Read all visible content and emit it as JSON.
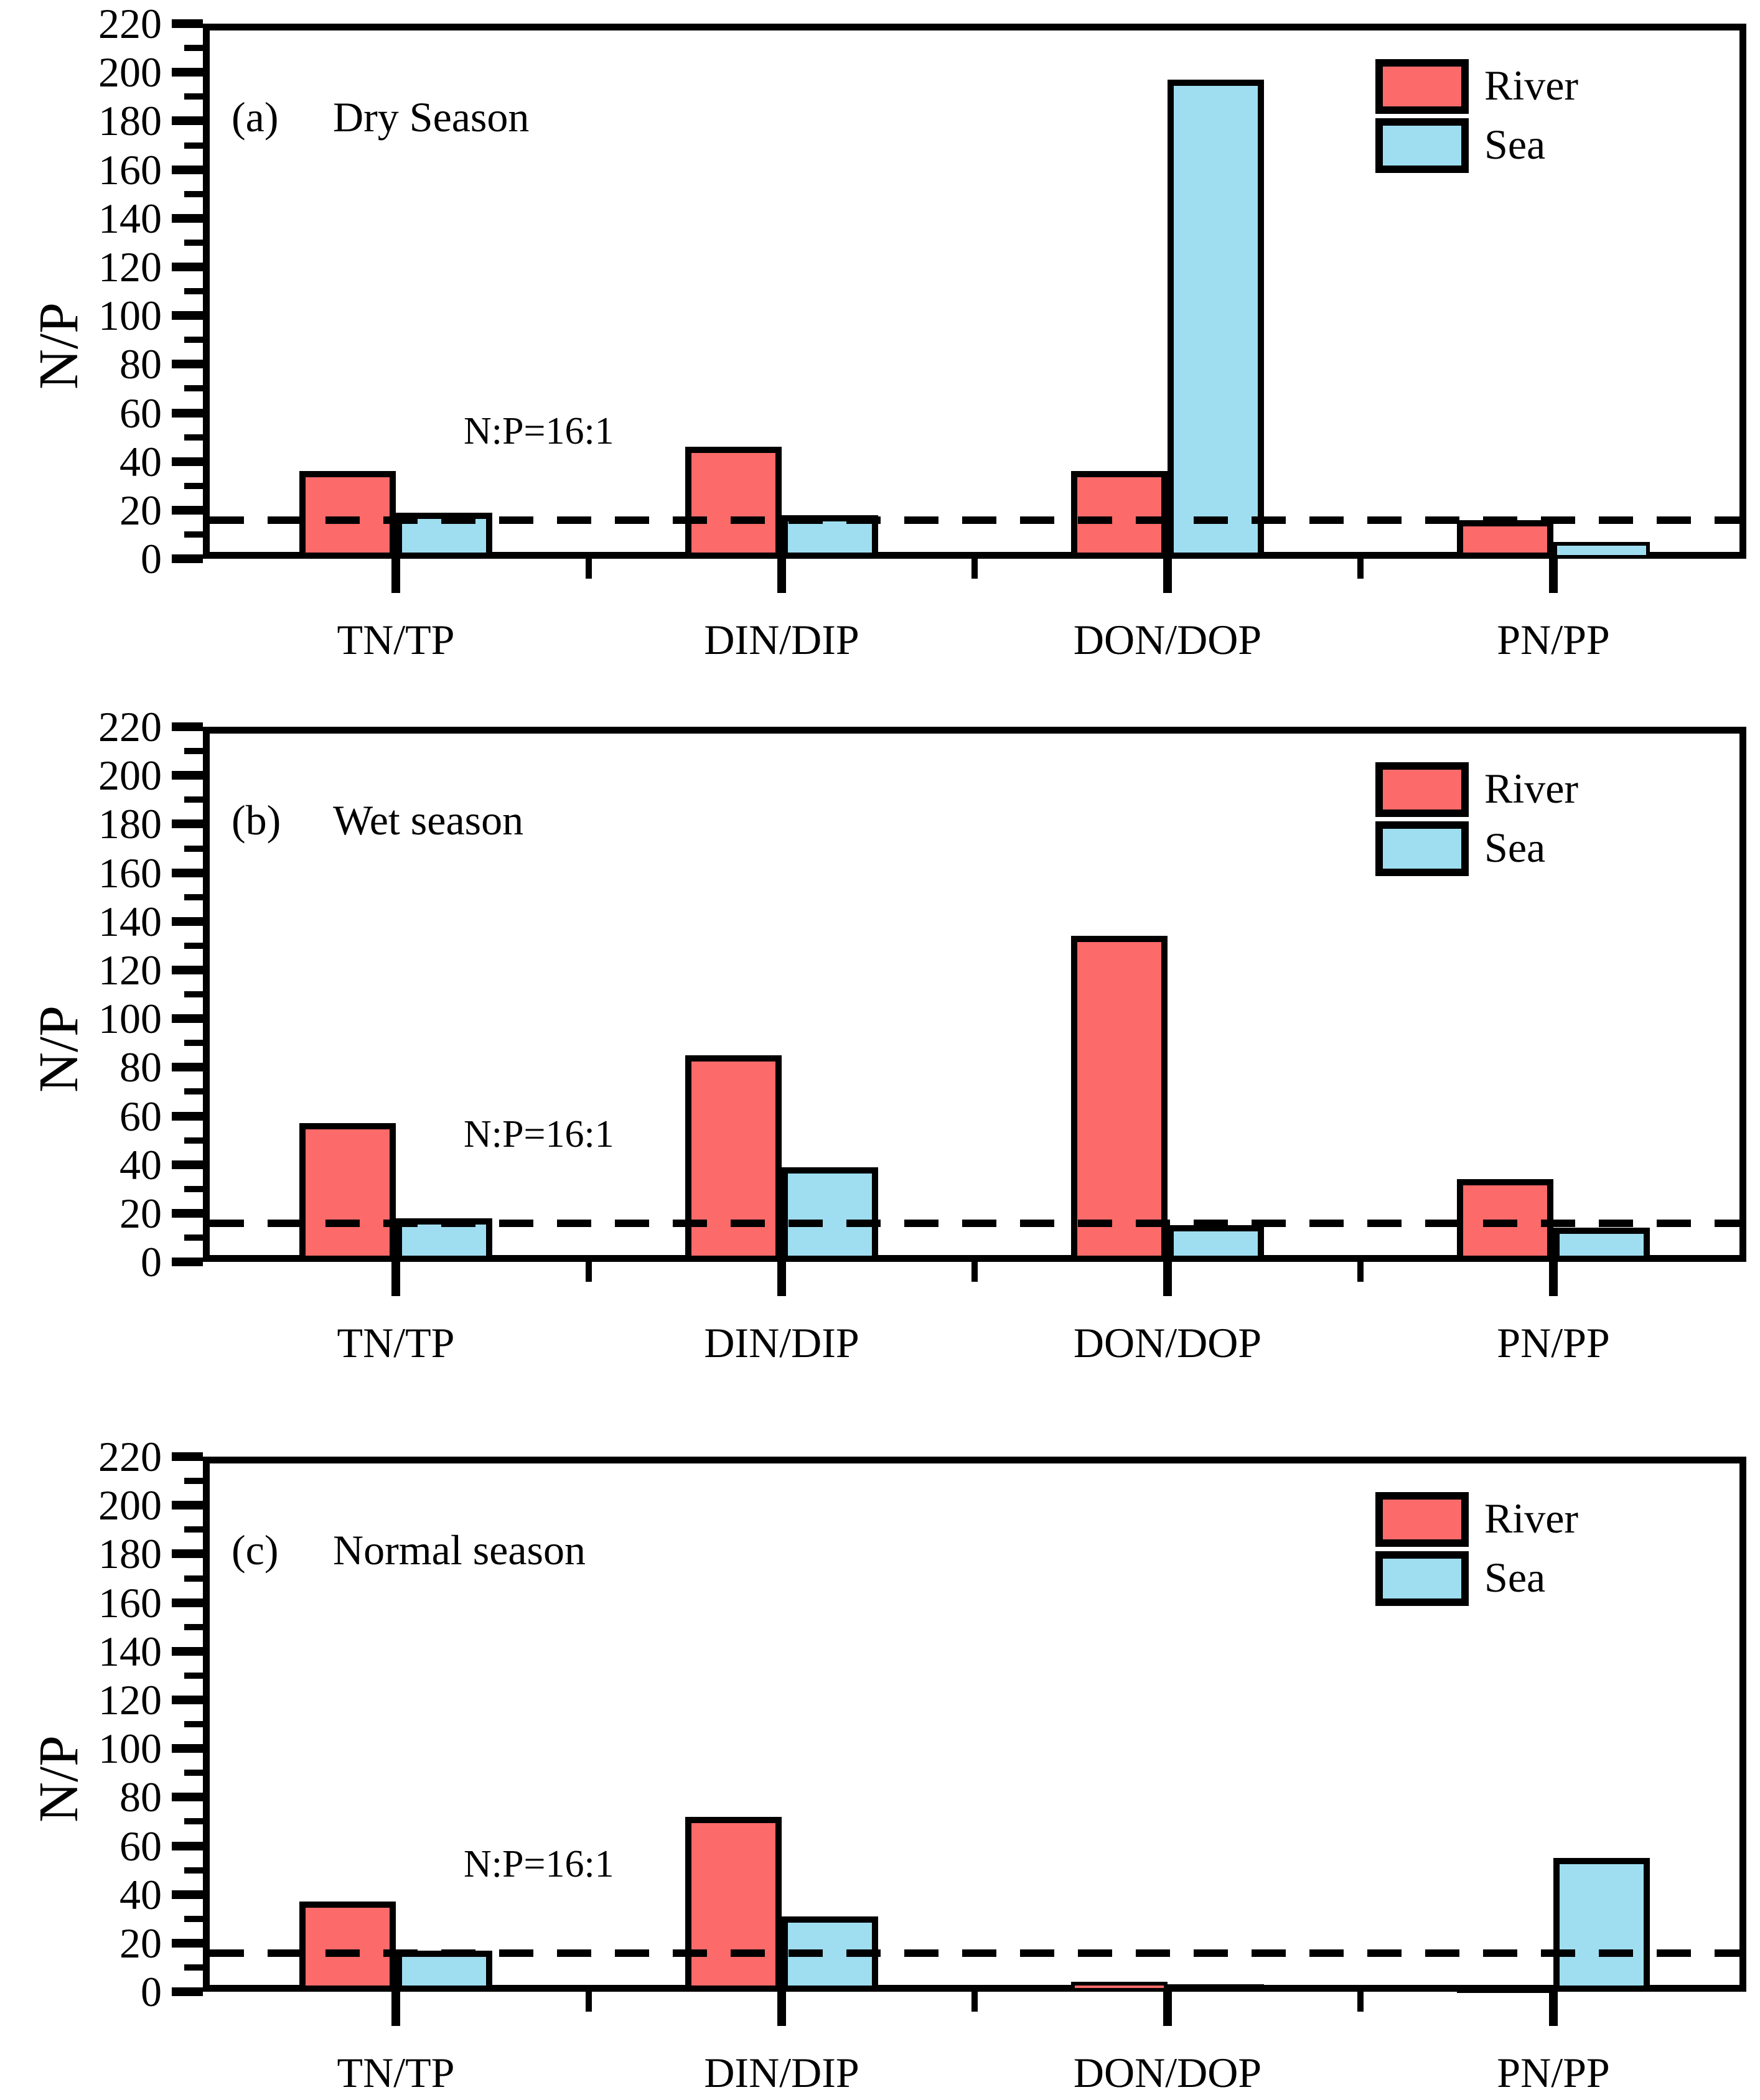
{
  "figure": {
    "background": "#ffffff",
    "axis_color": "#000000",
    "river_color": "#FC6A6A",
    "sea_color": "#9FDEF0"
  },
  "chart_data": [
    {
      "type": "bar",
      "panel_label": "(a)",
      "title": "Dry Season",
      "ylabel": "N/P",
      "ylim": [
        0,
        220
      ],
      "ytick_major_step": 20,
      "ytick_minor_step": 10,
      "ytick_labels": [
        "0",
        "20",
        "40",
        "60",
        "80",
        "100",
        "120",
        "140",
        "160",
        "180",
        "200",
        "220"
      ],
      "categories": [
        "TN/TP",
        "DIN/DIP",
        "DON/DOP",
        "PN/PP"
      ],
      "series": [
        {
          "name": "River",
          "color": "#FC6A6A",
          "values": [
            36,
            46,
            36,
            16
          ]
        },
        {
          "name": "Sea",
          "color": "#9FDEF0",
          "values": [
            19,
            18,
            197,
            7
          ]
        }
      ],
      "reference_line": {
        "value": 16,
        "label": "N:P=16:1",
        "style": "dashed"
      },
      "legend": {
        "position": "top-right",
        "entries": [
          "River",
          "Sea"
        ]
      },
      "grid": false
    },
    {
      "type": "bar",
      "panel_label": "(b)",
      "title": "Wet season",
      "ylabel": "N/P",
      "ylim": [
        0,
        220
      ],
      "ytick_major_step": 20,
      "ytick_minor_step": 10,
      "ytick_labels": [
        "0",
        "20",
        "40",
        "60",
        "80",
        "100",
        "120",
        "140",
        "160",
        "180",
        "200",
        "220"
      ],
      "categories": [
        "TN/TP",
        "DIN/DIP",
        "DON/DOP",
        "PN/PP"
      ],
      "series": [
        {
          "name": "River",
          "color": "#FC6A6A",
          "values": [
            57,
            85,
            134,
            34
          ]
        },
        {
          "name": "Sea",
          "color": "#9FDEF0",
          "values": [
            18,
            39,
            15,
            14
          ]
        }
      ],
      "reference_line": {
        "value": 16,
        "label": "N:P=16:1",
        "style": "dashed"
      },
      "legend": {
        "position": "top-right",
        "entries": [
          "River",
          "Sea"
        ]
      },
      "grid": false
    },
    {
      "type": "bar",
      "panel_label": "(c)",
      "title": "Normal season",
      "ylabel": "N/P",
      "ylim": [
        0,
        220
      ],
      "ytick_major_step": 20,
      "ytick_minor_step": 10,
      "ytick_labels": [
        "0",
        "20",
        "40",
        "60",
        "80",
        "100",
        "120",
        "140",
        "160",
        "180",
        "200",
        "220"
      ],
      "categories": [
        "TN/TP",
        "DIN/DIP",
        "DON/DOP",
        "PN/PP"
      ],
      "series": [
        {
          "name": "River",
          "color": "#FC6A6A",
          "values": [
            37,
            72,
            4,
            2
          ]
        },
        {
          "name": "Sea",
          "color": "#9FDEF0",
          "values": [
            17,
            31,
            3,
            55
          ]
        }
      ],
      "reference_line": {
        "value": 16,
        "label": "N:P=16:1",
        "style": "dashed"
      },
      "legend": {
        "position": "top-right",
        "entries": [
          "River",
          "Sea"
        ]
      },
      "grid": false
    }
  ]
}
